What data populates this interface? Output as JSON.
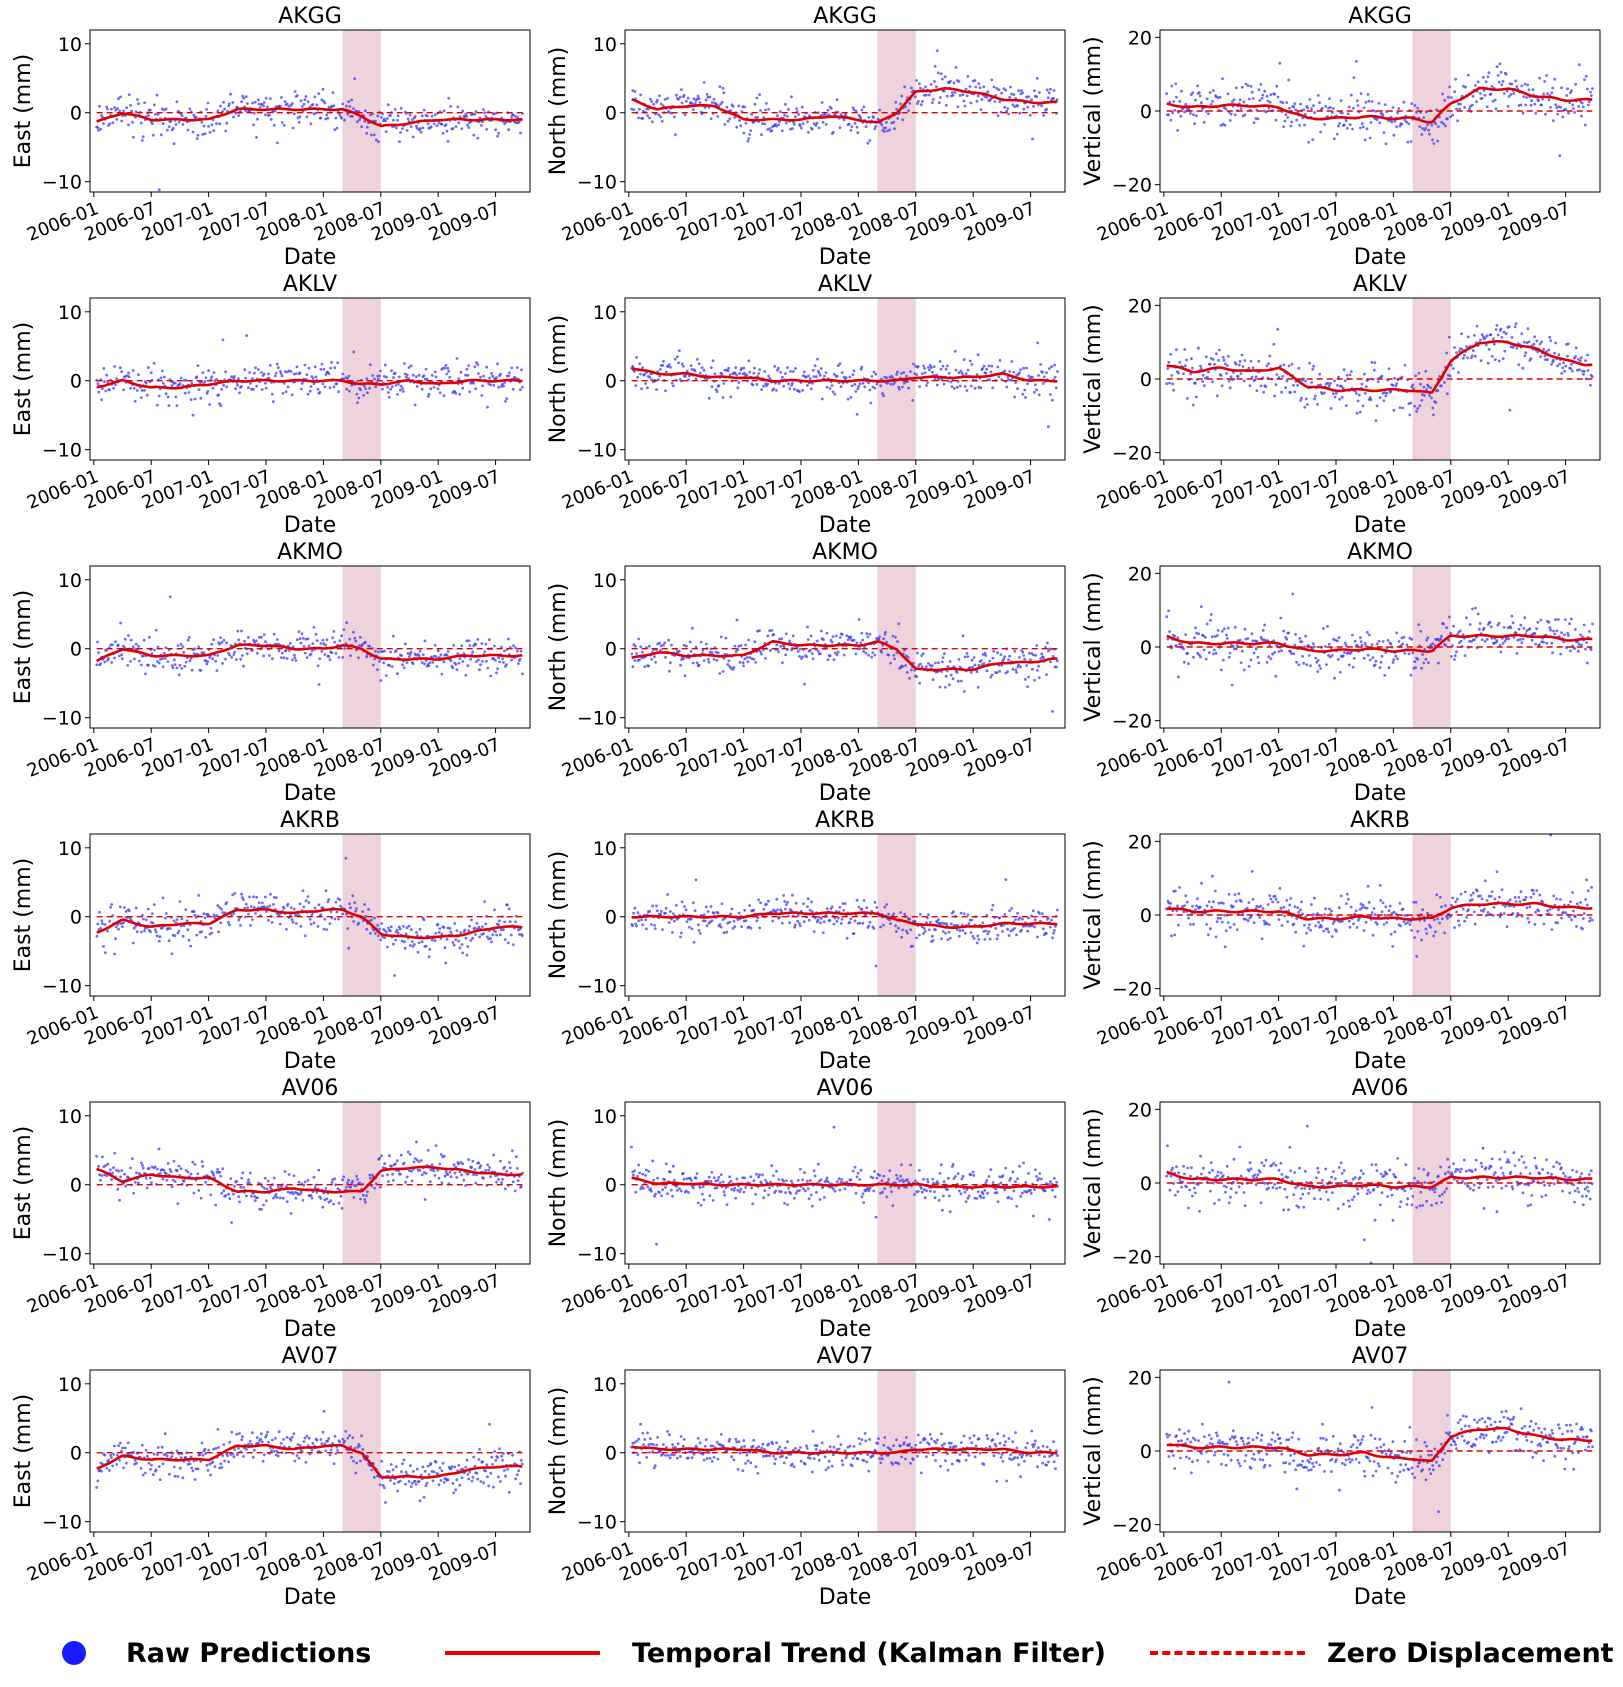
{
  "colors": {
    "raw": "#3b3bf5",
    "trend": "#e00000",
    "zero": "#e00000",
    "shade": "#efd3dc",
    "axis": "#000000"
  },
  "legend": {
    "raw_label": "Raw Predictions",
    "trend_label": "Temporal Trend (Kalman Filter)",
    "zero_label": "Zero Displacement"
  },
  "chart_data": {
    "type": "scatter",
    "grid": {
      "rows": 6,
      "cols": 3
    },
    "xlabel": "Date",
    "x_domain": [
      "2006-01",
      "2009-10"
    ],
    "xtick_labels": [
      "2006-01",
      "2006-07",
      "2007-01",
      "2007-07",
      "2008-01",
      "2008-07",
      "2009-01",
      "2009-07"
    ],
    "shaded_interval": [
      "2008-03",
      "2008-07"
    ],
    "columns": [
      {
        "component": "East",
        "ylabel": "East (mm)",
        "ylim": [
          -11.5,
          12
        ],
        "yticks": [
          -10,
          0,
          10
        ],
        "noise": 1.2
      },
      {
        "component": "North",
        "ylabel": "North (mm)",
        "ylim": [
          -11.5,
          12
        ],
        "yticks": [
          -10,
          0,
          10
        ],
        "noise": 1.2
      },
      {
        "component": "Vertical",
        "ylabel": "Vertical (mm)",
        "ylim": [
          -22,
          22
        ],
        "yticks": [
          -20,
          0,
          20
        ],
        "noise": 3.0
      }
    ],
    "stations": [
      "AKGG",
      "AKLV",
      "AKMO",
      "AKRB",
      "AV06",
      "AV07"
    ],
    "trend_knots_x": [
      "2006-01",
      "2006-04",
      "2006-07",
      "2006-10",
      "2007-01",
      "2007-04",
      "2007-07",
      "2007-10",
      "2008-01",
      "2008-03",
      "2008-05",
      "2008-07",
      "2008-10",
      "2009-01",
      "2009-04",
      "2009-07",
      "2009-09"
    ],
    "panels": [
      {
        "station": "AKGG",
        "component": "East",
        "trend": [
          -1.5,
          0,
          -1,
          -1,
          -1,
          0.5,
          0.5,
          0.5,
          0.5,
          0.5,
          -0.5,
          -2,
          -1.5,
          -1,
          -1,
          -1,
          -1
        ]
      },
      {
        "station": "AKGG",
        "component": "North",
        "trend": [
          2,
          0.5,
          1,
          1,
          -1,
          -1,
          -1,
          -0.5,
          -1,
          -1.5,
          0,
          3,
          3.5,
          3,
          2,
          1.5,
          1.5
        ]
      },
      {
        "station": "AKGG",
        "component": "Vertical",
        "trend": [
          2,
          1,
          1.5,
          1.5,
          1,
          -2,
          -2,
          -1.5,
          -2,
          -2,
          -3,
          2,
          6,
          6,
          4,
          3,
          3
        ]
      },
      {
        "station": "AKLV",
        "component": "East",
        "trend": [
          -1,
          0,
          -1,
          -1,
          -0.5,
          0,
          0,
          0,
          0,
          0,
          -0.5,
          -0.5,
          0,
          -0.5,
          0,
          0,
          0
        ]
      },
      {
        "station": "AKLV",
        "component": "North",
        "trend": [
          2,
          1,
          1,
          0.5,
          0.5,
          0,
          0,
          0,
          0,
          0,
          0,
          0.5,
          0.5,
          0.5,
          1,
          0,
          0
        ]
      },
      {
        "station": "AKLV",
        "component": "Vertical",
        "trend": [
          4,
          2,
          3,
          2,
          3,
          -2,
          -3,
          -3,
          -3,
          -3,
          -4,
          5,
          10,
          10,
          8,
          5,
          4
        ]
      },
      {
        "station": "AKMO",
        "component": "East",
        "trend": [
          -2,
          0,
          -1,
          -1,
          -1,
          0.5,
          0.5,
          0,
          0,
          0.5,
          0,
          -1.5,
          -1.5,
          -1.5,
          -1,
          -1,
          -1
        ]
      },
      {
        "station": "AKMO",
        "component": "North",
        "trend": [
          -1.5,
          -0.5,
          -1,
          -1,
          -1,
          1,
          0.5,
          0.5,
          0.5,
          1,
          0,
          -3,
          -3,
          -3,
          -2,
          -2,
          -1.5
        ]
      },
      {
        "station": "AKMO",
        "component": "Vertical",
        "trend": [
          3,
          1,
          1,
          1,
          1,
          -1,
          -1,
          -0.5,
          -1,
          -1,
          -1,
          3,
          3,
          3,
          3,
          2,
          2
        ]
      },
      {
        "station": "AKRB",
        "component": "East",
        "trend": [
          -2.5,
          -0.5,
          -1.5,
          -1,
          -1,
          1,
          1,
          0.5,
          1,
          1,
          0,
          -2.5,
          -3,
          -3,
          -2.5,
          -1.5,
          -1.5
        ]
      },
      {
        "station": "AKRB",
        "component": "North",
        "trend": [
          0,
          0,
          0,
          0,
          0,
          0.5,
          0.5,
          0.5,
          0.5,
          0.5,
          -0.5,
          -1,
          -1.5,
          -1.5,
          -1,
          -1,
          -1
        ]
      },
      {
        "station": "AKRB",
        "component": "Vertical",
        "trend": [
          2,
          1,
          1,
          1,
          1,
          -1,
          -1,
          -0.5,
          -1,
          -1,
          -1,
          2,
          3,
          3,
          3,
          2,
          2
        ]
      },
      {
        "station": "AV06",
        "component": "East",
        "trend": [
          2.5,
          0.5,
          1.5,
          1,
          1,
          -1,
          -1,
          -0.5,
          -1,
          -1,
          -1,
          2,
          2.5,
          2.5,
          2,
          1.5,
          1.5
        ]
      },
      {
        "station": "AV06",
        "component": "North",
        "trend": [
          1,
          0.2,
          0.2,
          0,
          0,
          0,
          0,
          0,
          0,
          0,
          0,
          0,
          -0.3,
          -0.3,
          -0.3,
          -0.3,
          -0.3
        ]
      },
      {
        "station": "AV06",
        "component": "Vertical",
        "trend": [
          3,
          1,
          1,
          1,
          1,
          -1,
          -1,
          -0.5,
          -1,
          -1,
          -1,
          1.5,
          1.5,
          1.5,
          1.5,
          1,
          1
        ]
      },
      {
        "station": "AV07",
        "component": "East",
        "trend": [
          -2.5,
          -0.5,
          -1,
          -1,
          -1,
          1,
          1,
          0.5,
          1,
          1,
          0,
          -3.5,
          -3.5,
          -3.5,
          -2.5,
          -2,
          -2
        ]
      },
      {
        "station": "AV07",
        "component": "North",
        "trend": [
          1,
          0.5,
          0.5,
          0.5,
          0.5,
          0,
          0,
          0,
          0,
          0,
          0,
          0.5,
          0.5,
          0.5,
          0.5,
          0,
          0
        ]
      },
      {
        "station": "AV07",
        "component": "Vertical",
        "trend": [
          2,
          1,
          1,
          1,
          1,
          -1,
          -1,
          -0.5,
          -2,
          -2,
          -3,
          4,
          6,
          6,
          4,
          3,
          3
        ]
      }
    ]
  }
}
